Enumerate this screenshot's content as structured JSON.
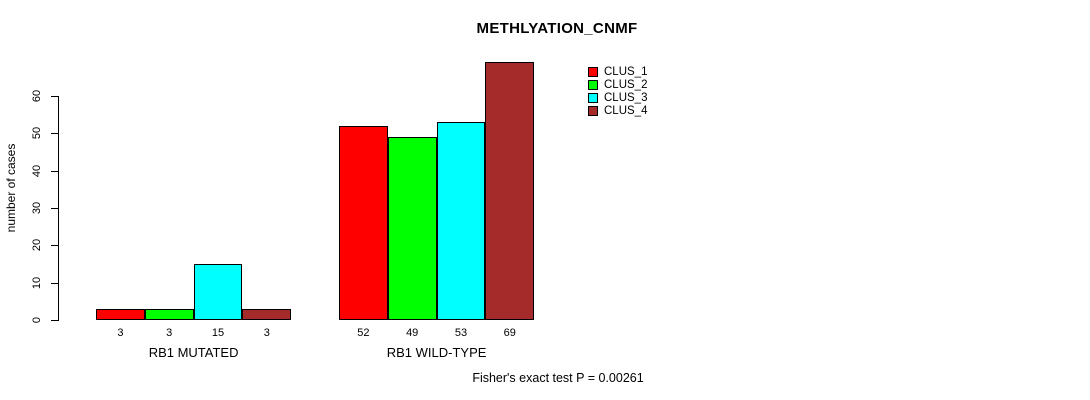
{
  "title": "METHLYATION_CNMF",
  "ylabel": "number of cases",
  "footer": "Fisher's exact test P = 0.00261",
  "chart_data": {
    "type": "bar",
    "title": "METHLYATION_CNMF",
    "ylabel": "number of cases",
    "xlabel": "",
    "categories": [
      "RB1 MUTATED",
      "RB1 WILD-TYPE"
    ],
    "series": [
      {
        "name": "CLUS_1",
        "color": "#FF0000",
        "values": [
          3,
          52
        ]
      },
      {
        "name": "CLUS_2",
        "color": "#00FF00",
        "values": [
          3,
          49
        ]
      },
      {
        "name": "CLUS_3",
        "color": "#00FFFF",
        "values": [
          15,
          53
        ]
      },
      {
        "name": "CLUS_4",
        "color": "#A52A2A",
        "values": [
          3,
          69
        ]
      }
    ],
    "bar_value_labels": [
      [
        3,
        3,
        15,
        3
      ],
      [
        52,
        49,
        53,
        69
      ]
    ],
    "yticks": [
      0,
      10,
      20,
      30,
      40,
      50,
      60
    ],
    "ylim": [
      0,
      69
    ],
    "grid": false,
    "legend_position": "top-right",
    "legend_entries": [
      "CLUS_1",
      "CLUS_2",
      "CLUS_3",
      "CLUS_4"
    ],
    "annotation": "Fisher's exact test P = 0.00261"
  },
  "colors": {
    "clus_1": "#FF0000",
    "clus_2": "#00FF00",
    "clus_3": "#00FFFF",
    "clus_4": "#A52A2A",
    "axis": "#000000",
    "background": "#FFFFFF"
  }
}
